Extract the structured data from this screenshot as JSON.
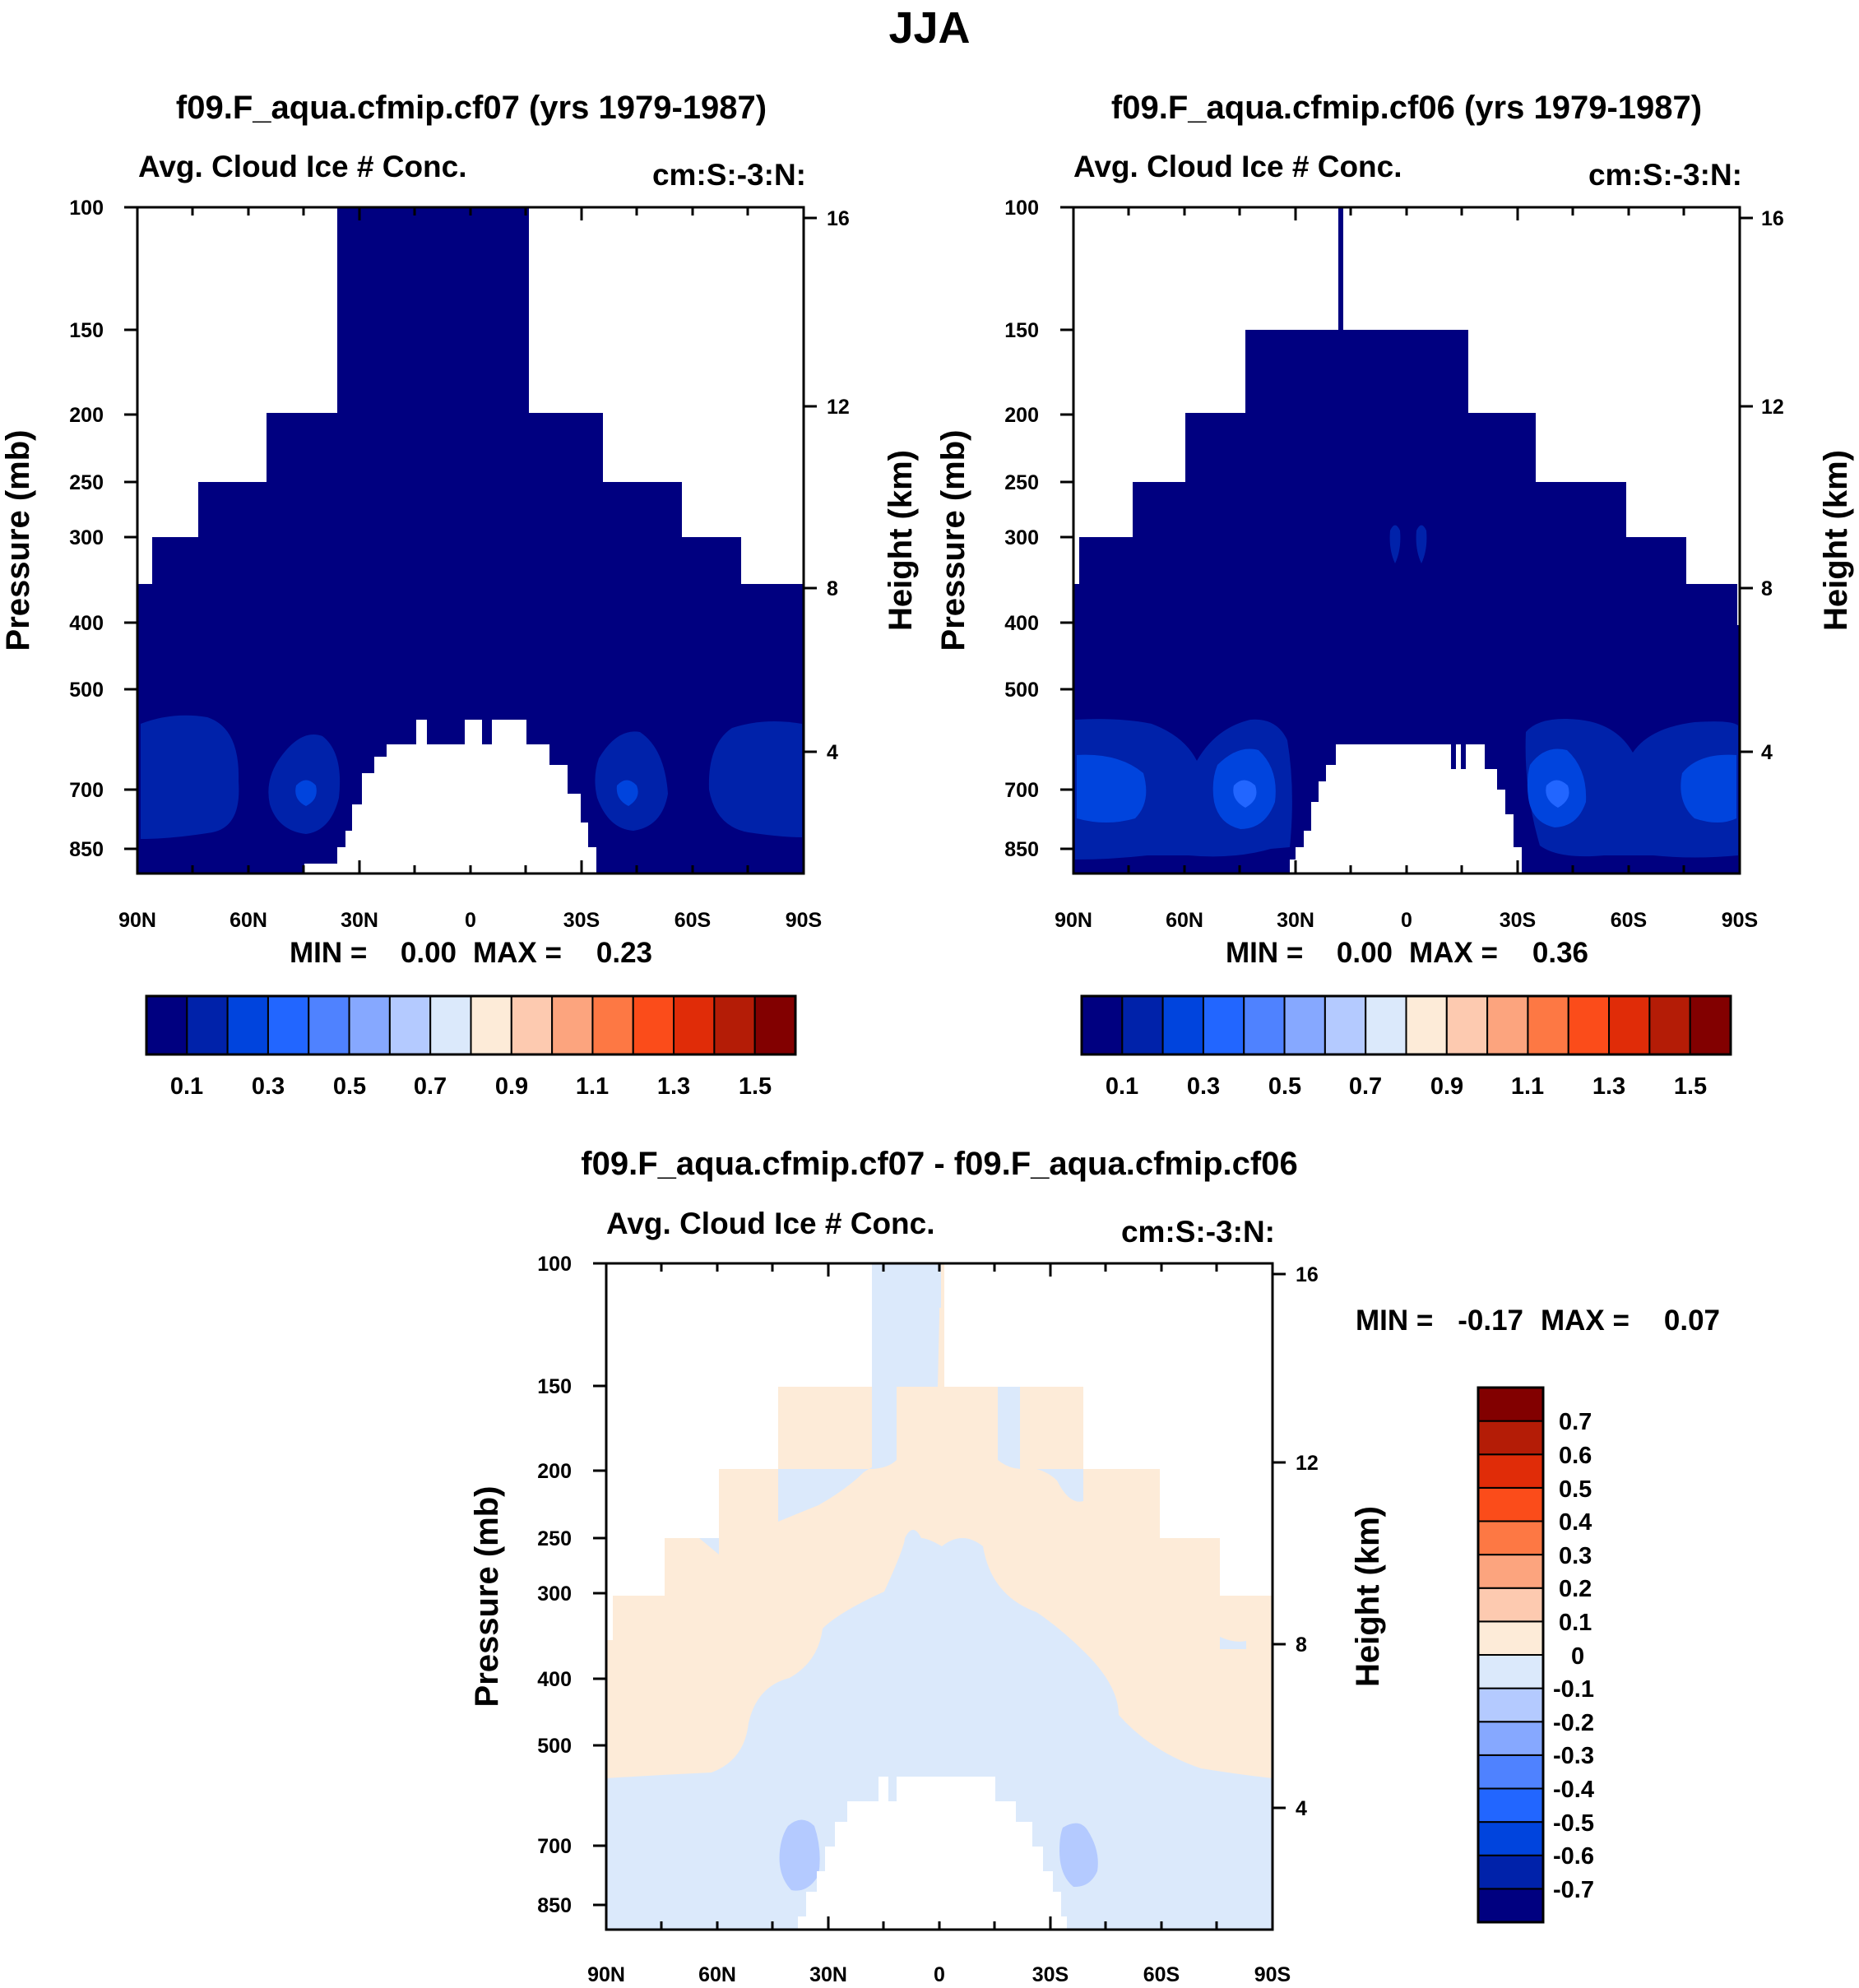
{
  "figure": {
    "title": "JJA"
  },
  "colors": {
    "main_scale": [
      "#000080",
      "#0022aa",
      "#0044dd",
      "#2266ff",
      "#4f82ff",
      "#86a8ff",
      "#b4caff",
      "#dbe9fb",
      "#fdebd8",
      "#fdcab0",
      "#fca47e",
      "#fd7844",
      "#fb4c1a",
      "#e02c08",
      "#b41c06",
      "#820000"
    ],
    "diff_scale": [
      "#000080",
      "#0022aa",
      "#0044dd",
      "#2266ff",
      "#4f82ff",
      "#86a8ff",
      "#b4caff",
      "#dbe9fb",
      "#fdebd8",
      "#fdcab0",
      "#fca47e",
      "#fd7844",
      "#fb4c1a",
      "#e02c08",
      "#b41c06",
      "#820000"
    ]
  },
  "chart_data": [
    {
      "type": "heatmap",
      "id": "case1",
      "title": "f09.F_aqua.cfmip.cf07 (yrs 1979-1987)",
      "left_label": "Avg. Cloud Ice # Conc.",
      "right_label": "cm:S:-3:N:",
      "xlabel": "",
      "ylabel": "Pressure (mb)",
      "y2label": "Height (km)",
      "x_ticks": [
        "90N",
        "60N",
        "30N",
        "0",
        "30S",
        "60S",
        "90S"
      ],
      "y_ticks": [
        "100",
        "150",
        "200",
        "250",
        "300",
        "400",
        "500",
        "700",
        "850"
      ],
      "y2_ticks": [
        "16",
        "12",
        "8",
        "4"
      ],
      "min_label": "MIN =",
      "min_value": "0.00",
      "max_label": "MAX =",
      "max_value": "0.23",
      "colorbar_labels": [
        "0.1",
        "0.3",
        "0.5",
        "0.7",
        "0.9",
        "1.1",
        "1.3",
        "1.5"
      ],
      "field_summary": "Values 0.0-0.1 over most of the domain; 0.1-0.2 in low-level maxima near 45N and 45S around 700 mb"
    },
    {
      "type": "heatmap",
      "id": "case2",
      "title": "f09.F_aqua.cfmip.cf06 (yrs 1979-1987)",
      "left_label": "Avg. Cloud Ice # Conc.",
      "right_label": "cm:S:-3:N:",
      "xlabel": "",
      "ylabel": "Pressure (mb)",
      "y2label": "Height (km)",
      "x_ticks": [
        "90N",
        "60N",
        "30N",
        "0",
        "30S",
        "60S",
        "90S"
      ],
      "y_ticks": [
        "100",
        "150",
        "200",
        "250",
        "300",
        "400",
        "500",
        "700",
        "850"
      ],
      "y2_ticks": [
        "16",
        "12",
        "8",
        "4"
      ],
      "min_label": "MIN =",
      "min_value": "0.00",
      "max_label": "MAX =",
      "max_value": "0.36",
      "colorbar_labels": [
        "0.1",
        "0.3",
        "0.5",
        "0.7",
        "0.9",
        "1.1",
        "1.3",
        "1.5"
      ],
      "field_summary": "Values 0.0-0.1 aloft; 0.1-0.3 below 500 mb with maxima near 40N, 40S and the poles around 700 mb"
    },
    {
      "type": "heatmap",
      "id": "diff",
      "title": "f09.F_aqua.cfmip.cf07 - f09.F_aqua.cfmip.cf06",
      "left_label": "Avg. Cloud Ice # Conc.",
      "right_label": "cm:S:-3:N:",
      "xlabel": "",
      "ylabel": "Pressure (mb)",
      "y2label": "Height (km)",
      "x_ticks": [
        "90N",
        "60N",
        "30N",
        "0",
        "30S",
        "60S",
        "90S"
      ],
      "y_ticks": [
        "100",
        "150",
        "200",
        "250",
        "300",
        "400",
        "500",
        "700",
        "850"
      ],
      "y2_ticks": [
        "16",
        "12",
        "8",
        "4"
      ],
      "min_label": "MIN =",
      "min_value": "-0.17",
      "max_label": "MAX =",
      "max_value": "0.07",
      "colorbar_labels": [
        "0.7",
        "0.6",
        "0.5",
        "0.4",
        "0.3",
        "0.2",
        "0.1",
        "0",
        "-0.1",
        "-0.2",
        "-0.3",
        "-0.4",
        "-0.5",
        "-0.6",
        "-0.7"
      ],
      "field_summary": "0 to 0.1 in the upper troposphere; -0.1 to 0 in the tropics and below 500 mb; -0.2 to -0.1 near 35N and 35S at 700 mb"
    }
  ]
}
